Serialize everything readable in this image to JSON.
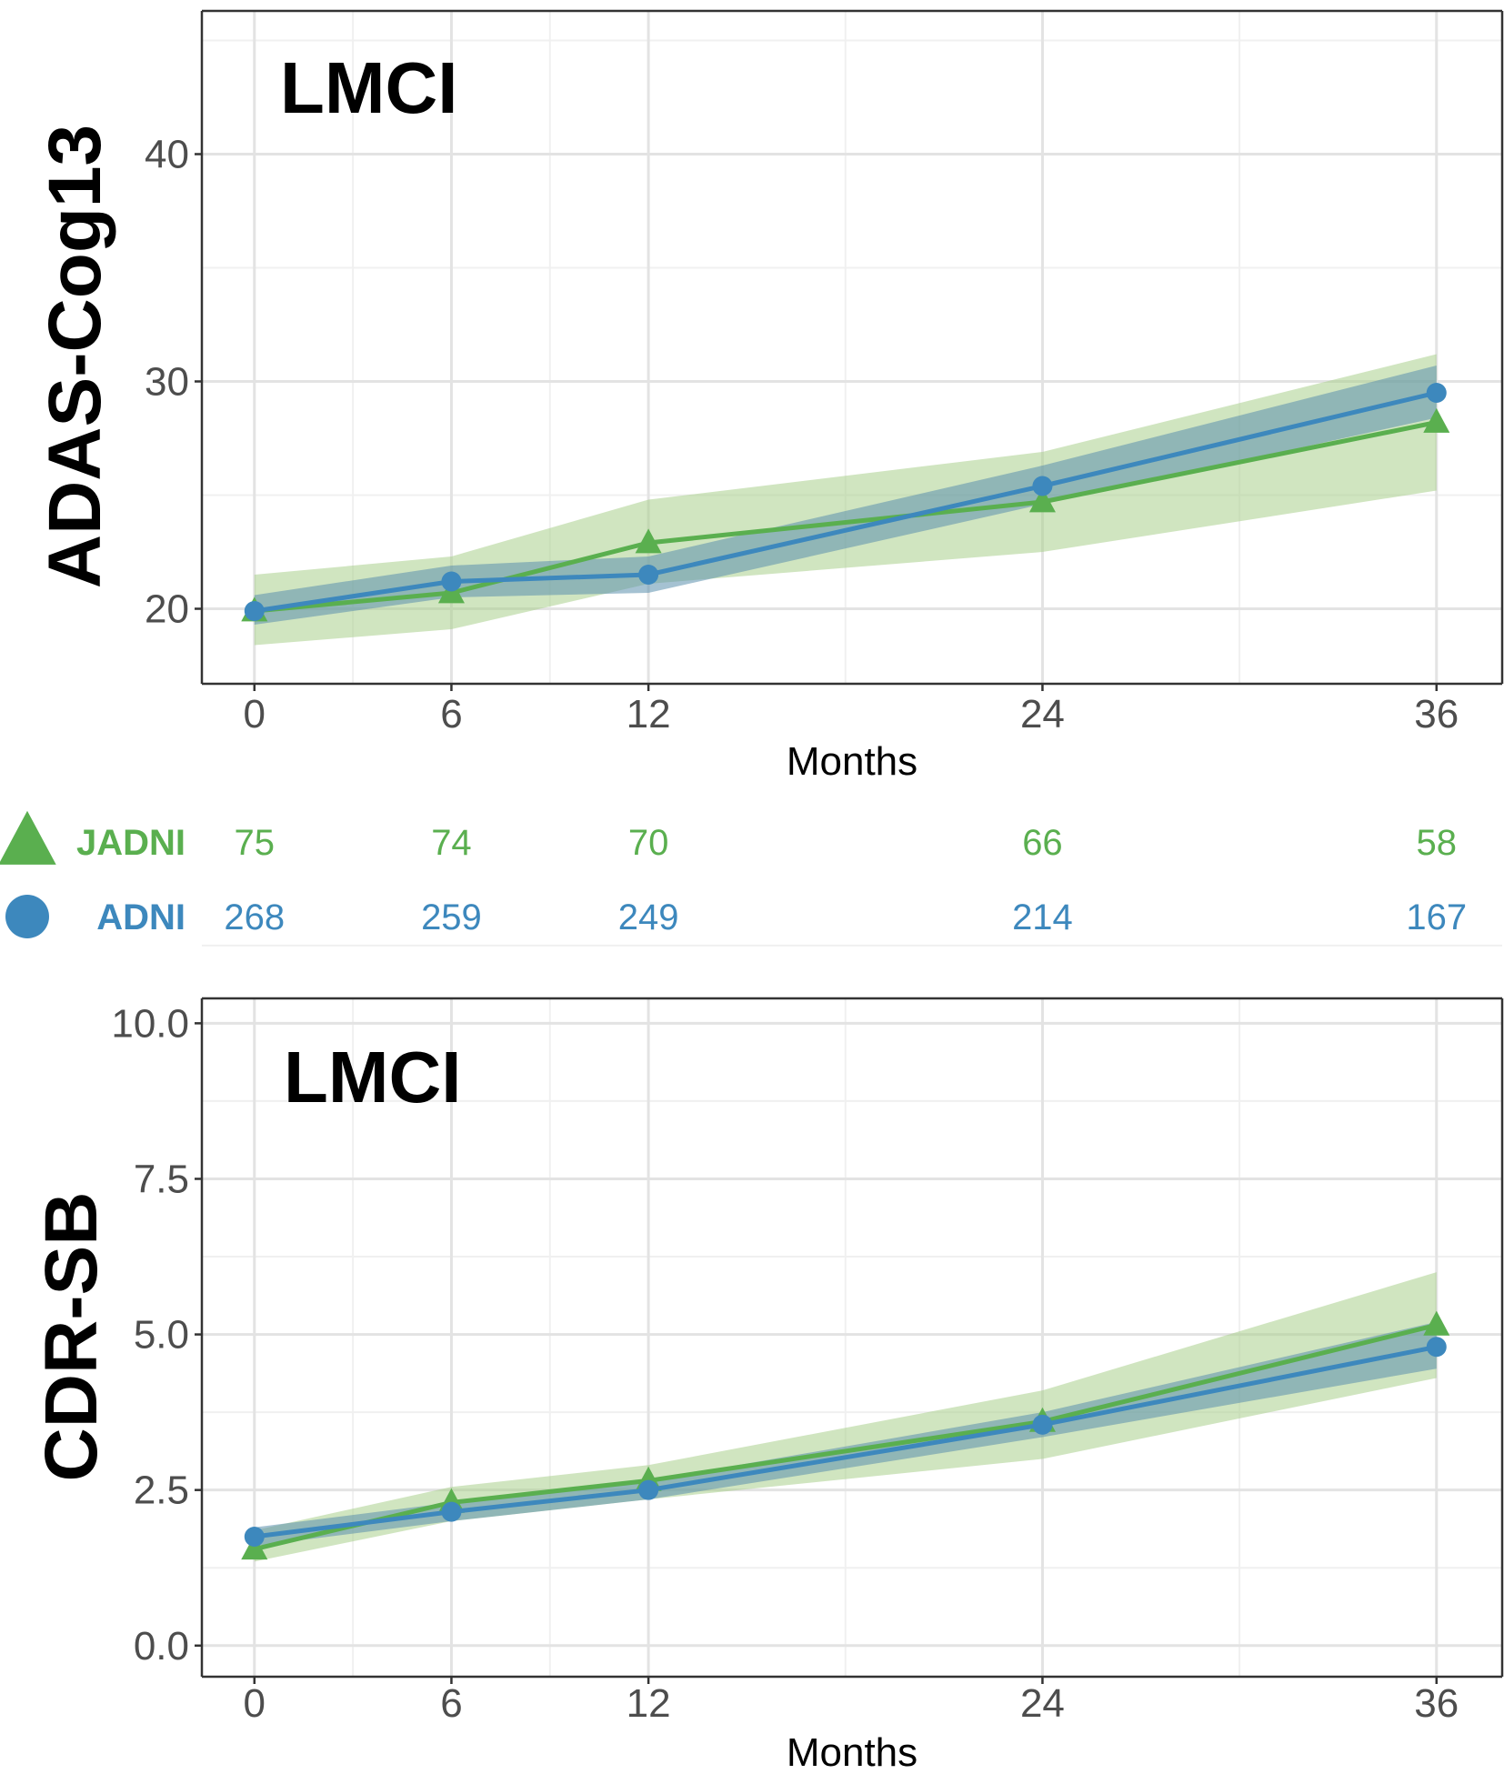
{
  "colors": {
    "jadni": "#5aaf4f",
    "adni": "#3d88bd",
    "jadni_band": "#a9cf8d",
    "adni_band": "#5b8fad"
  },
  "risk_table": {
    "rows": [
      {
        "label": "JADNI",
        "marker": "triangle",
        "counts": [
          "75",
          "74",
          "70",
          "66",
          "58"
        ]
      },
      {
        "label": "ADNI",
        "marker": "circle",
        "counts": [
          "268",
          "259",
          "249",
          "214",
          "167"
        ]
      }
    ]
  },
  "chart_data": [
    {
      "type": "line",
      "title": "LMCI",
      "xlabel": "Months",
      "ylabel": "ADAS-Cog13",
      "x": [
        0,
        6,
        12,
        24,
        36
      ],
      "xticks": [
        "0",
        "6",
        "12",
        "24",
        "36"
      ],
      "yticks": [
        "20",
        "30",
        "40"
      ],
      "xlim": [
        -1.6,
        38
      ],
      "ylim": [
        16.7,
        46.3
      ],
      "grid": true,
      "series": [
        {
          "name": "JADNI",
          "marker": "triangle",
          "values": [
            19.9,
            20.7,
            22.9,
            24.7,
            28.2
          ],
          "lower": [
            18.4,
            19.1,
            21.1,
            22.5,
            25.2
          ],
          "upper": [
            21.5,
            22.3,
            24.8,
            26.9,
            31.2
          ]
        },
        {
          "name": "ADNI",
          "marker": "circle",
          "values": [
            19.9,
            21.2,
            21.5,
            25.4,
            29.5
          ],
          "lower": [
            19.3,
            20.5,
            20.7,
            24.6,
            28.4
          ],
          "upper": [
            20.6,
            21.9,
            22.3,
            26.3,
            30.7
          ]
        }
      ]
    },
    {
      "type": "line",
      "title": "LMCI",
      "xlabel": "Months",
      "ylabel": "CDR-SB",
      "x": [
        0,
        6,
        12,
        24,
        36
      ],
      "xticks": [
        "0",
        "6",
        "12",
        "24",
        "36"
      ],
      "yticks": [
        "0.0",
        "2.5",
        "5.0",
        "7.5",
        "10.0"
      ],
      "xlim": [
        -1.6,
        38
      ],
      "ylim": [
        -0.5,
        10.4
      ],
      "grid": true,
      "series": [
        {
          "name": "JADNI",
          "marker": "triangle",
          "values": [
            1.55,
            2.3,
            2.65,
            3.6,
            5.15
          ],
          "lower": [
            1.35,
            2.0,
            2.35,
            3.0,
            4.3
          ],
          "upper": [
            1.85,
            2.55,
            2.9,
            4.1,
            6.0
          ]
        },
        {
          "name": "ADNI",
          "marker": "circle",
          "values": [
            1.75,
            2.15,
            2.5,
            3.55,
            4.8
          ],
          "lower": [
            1.6,
            2.0,
            2.35,
            3.35,
            4.45
          ],
          "upper": [
            1.9,
            2.3,
            2.65,
            3.75,
            5.2
          ]
        }
      ]
    }
  ]
}
